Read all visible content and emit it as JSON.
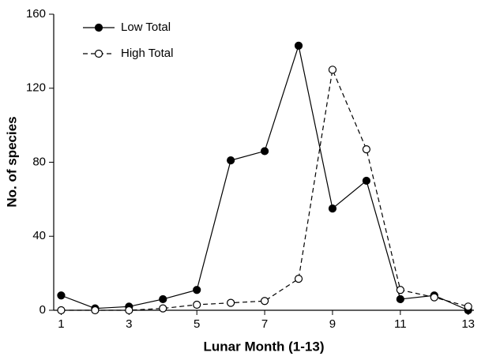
{
  "chart_data": {
    "type": "line",
    "x_label": "Lunar Month (1-13)",
    "y_label": "No. of species",
    "x": [
      1,
      2,
      3,
      4,
      5,
      6,
      7,
      8,
      9,
      10,
      11,
      12,
      13
    ],
    "series": [
      {
        "name": "Low Total",
        "color": "#000000",
        "line_style": "solid",
        "marker": "filled",
        "values": [
          8,
          1,
          2,
          6,
          11,
          81,
          86,
          143,
          55,
          70,
          6,
          8,
          0
        ]
      },
      {
        "name": "High Total",
        "color": "#000000",
        "line_style": "dashed",
        "marker": "open",
        "values": [
          0,
          0,
          0,
          1,
          3,
          4,
          5,
          17,
          130,
          87,
          11,
          7,
          2
        ]
      }
    ],
    "xlim": [
      0.78,
      13.17
    ],
    "xticks": [
      1,
      3,
      5,
      7,
      9,
      11,
      13
    ],
    "ylim": [
      0,
      160
    ],
    "yticks": [
      0,
      40,
      80,
      120,
      160
    ],
    "grid": false,
    "legend": "upper left"
  }
}
